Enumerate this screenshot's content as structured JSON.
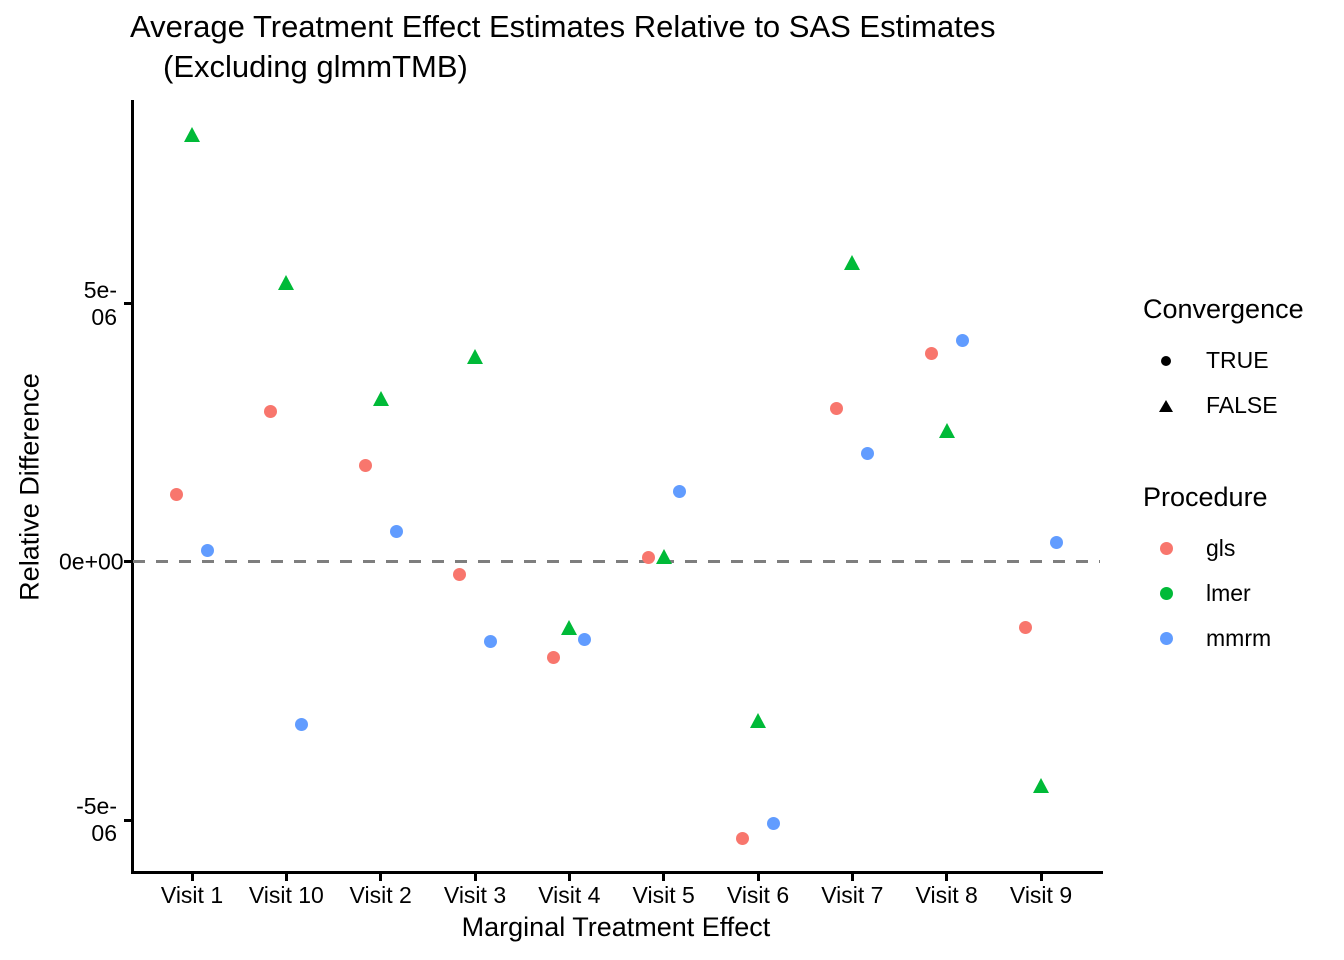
{
  "chart_data": {
    "type": "scatter",
    "title": "Average Treatment Effect Estimates Relative to SAS Estimates",
    "subtitle": "(Excluding glmmTMB)",
    "xlabel": "Marginal Treatment Effect",
    "ylabel": "Relative Difference",
    "categories": [
      "Visit 1",
      "Visit 10",
      "Visit 2",
      "Visit 3",
      "Visit 4",
      "Visit 5",
      "Visit 6",
      "Visit 7",
      "Visit 8",
      "Visit 9"
    ],
    "y_ticks": [
      {
        "value": 5e-06,
        "label": "5e-06"
      },
      {
        "value": 0,
        "label": "0e+00"
      },
      {
        "value": -5e-06,
        "label": "-5e-06"
      }
    ],
    "ylim": [
      -6e-06,
      8.9e-06
    ],
    "grid": "off",
    "legend_position": "right",
    "reference_line": {
      "y": 0,
      "style": "dashed",
      "color": "#7E7E7E"
    },
    "points": [
      {
        "visit": "Visit 1",
        "procedure": "gls",
        "convergence": "TRUE",
        "value": 1.3e-06
      },
      {
        "visit": "Visit 1",
        "procedure": "lmer",
        "convergence": "FALSE",
        "value": 8.26e-06
      },
      {
        "visit": "Visit 1",
        "procedure": "mmrm",
        "convergence": "TRUE",
        "value": 2.3e-07
      },
      {
        "visit": "Visit 10",
        "procedure": "gls",
        "convergence": "TRUE",
        "value": 2.92e-06
      },
      {
        "visit": "Visit 10",
        "procedure": "lmer",
        "convergence": "FALSE",
        "value": 5.4e-06
      },
      {
        "visit": "Visit 10",
        "procedure": "mmrm",
        "convergence": "TRUE",
        "value": -3.15e-06
      },
      {
        "visit": "Visit 2",
        "procedure": "gls",
        "convergence": "TRUE",
        "value": 1.86e-06
      },
      {
        "visit": "Visit 2",
        "procedure": "lmer",
        "convergence": "FALSE",
        "value": 3.15e-06
      },
      {
        "visit": "Visit 2",
        "procedure": "mmrm",
        "convergence": "TRUE",
        "value": 5.8e-07
      },
      {
        "visit": "Visit 3",
        "procedure": "gls",
        "convergence": "TRUE",
        "value": -2.5e-07
      },
      {
        "visit": "Visit 3",
        "procedure": "lmer",
        "convergence": "FALSE",
        "value": 3.97e-06
      },
      {
        "visit": "Visit 3",
        "procedure": "mmrm",
        "convergence": "TRUE",
        "value": -1.53e-06
      },
      {
        "visit": "Visit 4",
        "procedure": "gls",
        "convergence": "TRUE",
        "value": -1.84e-06
      },
      {
        "visit": "Visit 4",
        "procedure": "lmer",
        "convergence": "FALSE",
        "value": -1.28e-06
      },
      {
        "visit": "Visit 4",
        "procedure": "mmrm",
        "convergence": "TRUE",
        "value": -1.51e-06
      },
      {
        "visit": "Visit 5",
        "procedure": "gls",
        "convergence": "TRUE",
        "value": 8e-08
      },
      {
        "visit": "Visit 5",
        "procedure": "lmer",
        "convergence": "FALSE",
        "value": 1e-07
      },
      {
        "visit": "Visit 5",
        "procedure": "mmrm",
        "convergence": "TRUE",
        "value": 1.37e-06
      },
      {
        "visit": "Visit 6",
        "procedure": "gls",
        "convergence": "TRUE",
        "value": -5.36e-06
      },
      {
        "visit": "Visit 6",
        "procedure": "lmer",
        "convergence": "FALSE",
        "value": -3.08e-06
      },
      {
        "visit": "Visit 6",
        "procedure": "mmrm",
        "convergence": "TRUE",
        "value": -5.07e-06
      },
      {
        "visit": "Visit 7",
        "procedure": "gls",
        "convergence": "TRUE",
        "value": 2.96e-06
      },
      {
        "visit": "Visit 7",
        "procedure": "lmer",
        "convergence": "FALSE",
        "value": 5.78e-06
      },
      {
        "visit": "Visit 7",
        "procedure": "mmrm",
        "convergence": "TRUE",
        "value": 2.09e-06
      },
      {
        "visit": "Visit 8",
        "procedure": "gls",
        "convergence": "TRUE",
        "value": 4.04e-06
      },
      {
        "visit": "Visit 8",
        "procedure": "lmer",
        "convergence": "FALSE",
        "value": 2.53e-06
      },
      {
        "visit": "Visit 8",
        "procedure": "mmrm",
        "convergence": "TRUE",
        "value": 4.28e-06
      },
      {
        "visit": "Visit 9",
        "procedure": "gls",
        "convergence": "TRUE",
        "value": -1.26e-06
      },
      {
        "visit": "Visit 9",
        "procedure": "lmer",
        "convergence": "FALSE",
        "value": -4.33e-06
      },
      {
        "visit": "Visit 9",
        "procedure": "mmrm",
        "convergence": "TRUE",
        "value": 3.7e-07
      }
    ]
  },
  "colors": {
    "gls": "#F8766D",
    "lmer": "#00BA38",
    "mmrm": "#619CFF",
    "legend_marker": "#000000",
    "axis": "#000000",
    "reference_line": "#7E7E7E"
  },
  "legend": {
    "convergence": {
      "title": "Convergence",
      "items": [
        {
          "label": "TRUE",
          "marker": "circle"
        },
        {
          "label": "FALSE",
          "marker": "triangle"
        }
      ]
    },
    "procedure": {
      "title": "Procedure",
      "items": [
        {
          "label": "gls",
          "marker": "circle",
          "color": "#F8766D"
        },
        {
          "label": "lmer",
          "marker": "circle",
          "color": "#00BA38"
        },
        {
          "label": "mmrm",
          "marker": "circle",
          "color": "#619CFF"
        }
      ]
    }
  }
}
